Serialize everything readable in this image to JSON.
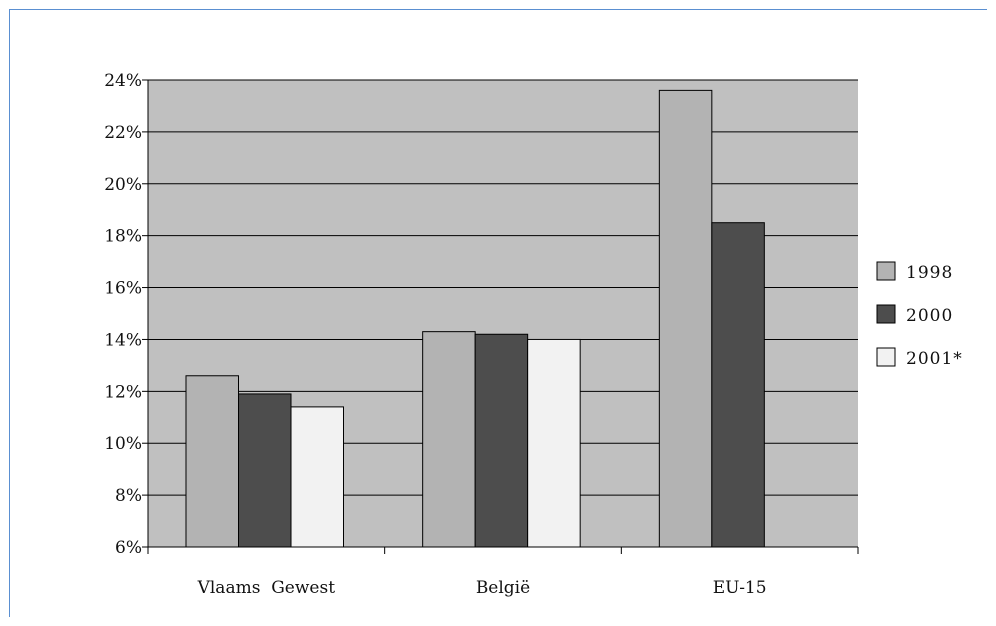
{
  "chart_data": {
    "type": "bar",
    "categories": [
      "Vlaams  Gewest",
      "België",
      "EU-15"
    ],
    "series": [
      {
        "name": "1998",
        "values": [
          12.6,
          14.3,
          23.6
        ],
        "color": "#b3b3b3"
      },
      {
        "name": "2000",
        "values": [
          11.9,
          14.2,
          18.5
        ],
        "color": "#4d4d4d"
      },
      {
        "name": "2001*",
        "values": [
          11.4,
          14.0,
          null
        ],
        "color": "#f2f2f2"
      }
    ],
    "yticks": [
      6,
      8,
      10,
      12,
      14,
      16,
      18,
      20,
      22,
      24
    ],
    "ytick_labels": [
      "6%",
      "8%",
      "10%",
      "12%",
      "14%",
      "16%",
      "18%",
      "20%",
      "22%",
      "24%"
    ],
    "ylim": [
      6,
      24
    ],
    "title": "",
    "xlabel": "",
    "ylabel": "",
    "grid": true,
    "legend_position": "right",
    "plot_background": "#c0c0c0"
  }
}
